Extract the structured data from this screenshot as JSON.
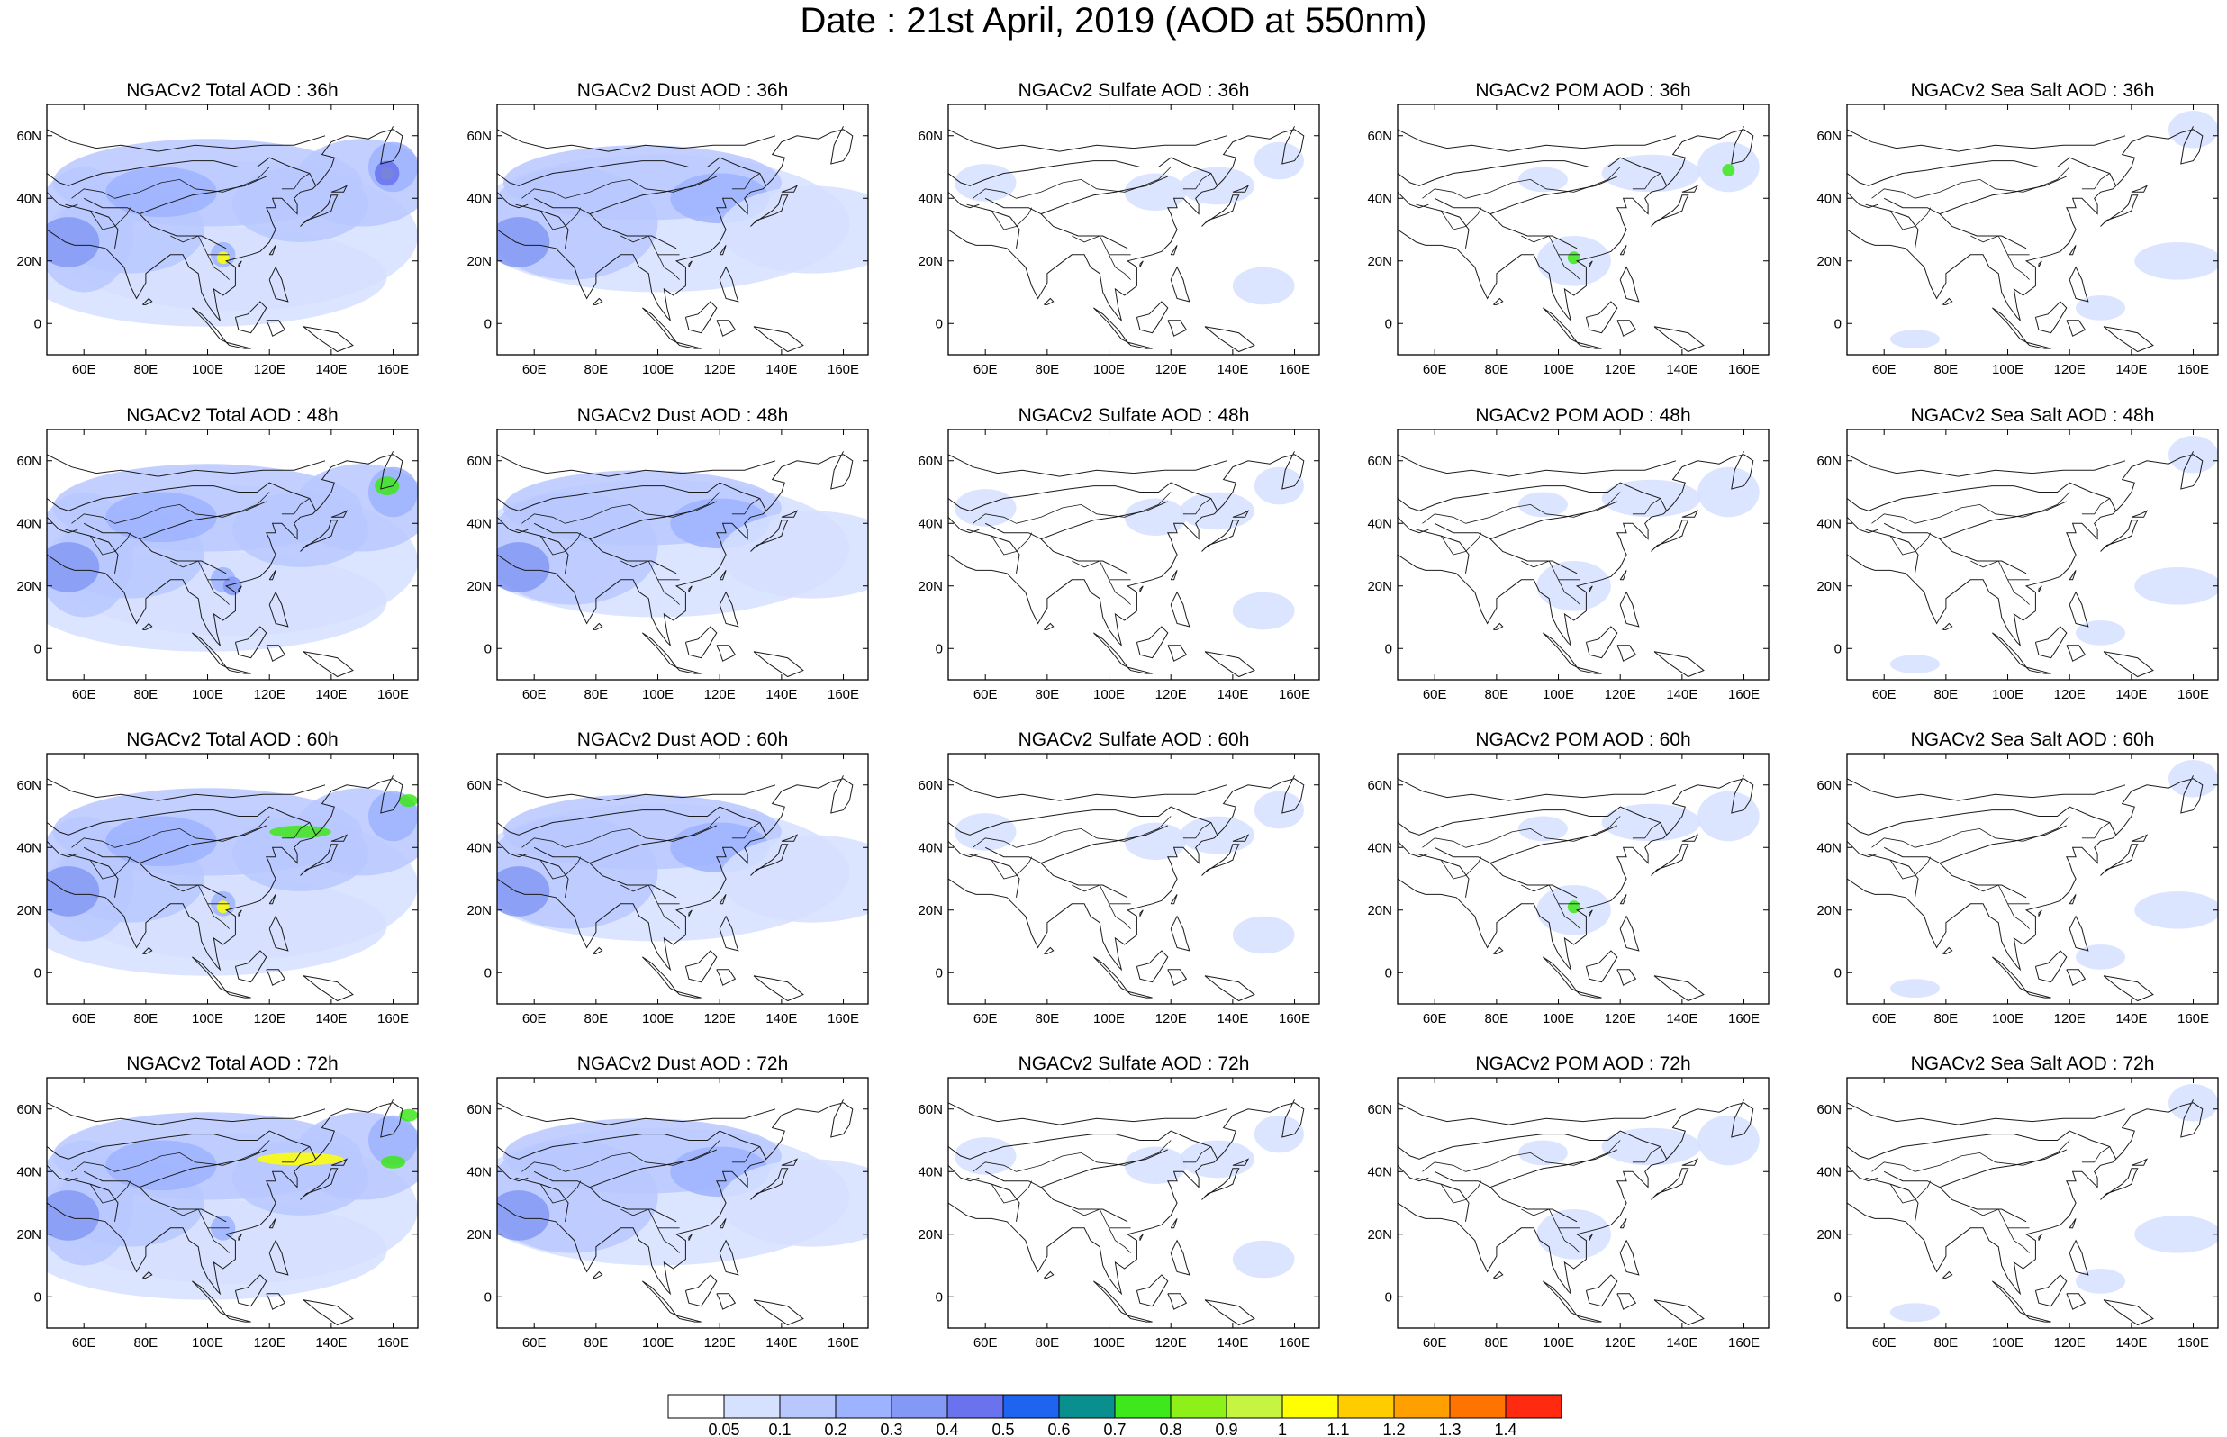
{
  "title": "Date : 21st April, 2019 (AOD at 550nm)",
  "panels": [
    {
      "title": "NGACv2 Total AOD : 36h",
      "field": "total"
    },
    {
      "title": "NGACv2 Dust AOD : 36h",
      "field": "dust"
    },
    {
      "title": "NGACv2 Sulfate AOD : 36h",
      "field": "sulfate"
    },
    {
      "title": "NGACv2 POM AOD : 36h",
      "field": "pom"
    },
    {
      "title": "NGACv2 Sea Salt AOD : 36h",
      "field": "seasalt"
    },
    {
      "title": "NGACv2 Total AOD : 48h",
      "field": "total"
    },
    {
      "title": "NGACv2 Dust AOD : 48h",
      "field": "dust"
    },
    {
      "title": "NGACv2 Sulfate AOD : 48h",
      "field": "sulfate"
    },
    {
      "title": "NGACv2 POM AOD : 48h",
      "field": "pom"
    },
    {
      "title": "NGACv2 Sea Salt AOD : 48h",
      "field": "seasalt"
    },
    {
      "title": "NGACv2 Total AOD : 60h",
      "field": "total"
    },
    {
      "title": "NGACv2 Dust AOD : 60h",
      "field": "dust"
    },
    {
      "title": "NGACv2 Sulfate AOD : 60h",
      "field": "sulfate"
    },
    {
      "title": "NGACv2 POM AOD : 60h",
      "field": "pom"
    },
    {
      "title": "NGACv2 Sea Salt AOD : 60h",
      "field": "seasalt"
    },
    {
      "title": "NGACv2 Total AOD : 72h",
      "field": "total"
    },
    {
      "title": "NGACv2 Dust AOD : 72h",
      "field": "dust"
    },
    {
      "title": "NGACv2 Sulfate AOD : 72h",
      "field": "sulfate"
    },
    {
      "title": "NGACv2 POM AOD : 72h",
      "field": "pom"
    },
    {
      "title": "NGACv2 Sea Salt  AOD : 72h",
      "field": "seasalt"
    }
  ],
  "axes": {
    "lat_labels": [
      "60N",
      "40N",
      "20N",
      "0"
    ],
    "lon_labels": [
      "60E",
      "80E",
      "100E",
      "120E",
      "140E",
      "160E"
    ],
    "lon_range": [
      48,
      168
    ],
    "lat_range": [
      -10,
      70
    ]
  },
  "colorbar": {
    "labels": [
      "0.05",
      "0.1",
      "0.2",
      "0.3",
      "0.4",
      "0.5",
      "0.6",
      "0.7",
      "0.8",
      "0.9",
      "1",
      "1.1",
      "1.2",
      "1.3",
      "1.4"
    ],
    "colors": [
      "#ffffff",
      "#d6e0ff",
      "#b8c8ff",
      "#9db3ff",
      "#8499f5",
      "#6a72ee",
      "#1f64f0",
      "#0a8f8f",
      "#3ee81a",
      "#8ef019",
      "#c5f540",
      "#ffff00",
      "#ffcc00",
      "#ff9f00",
      "#ff7300",
      "#ff2a10"
    ]
  }
}
